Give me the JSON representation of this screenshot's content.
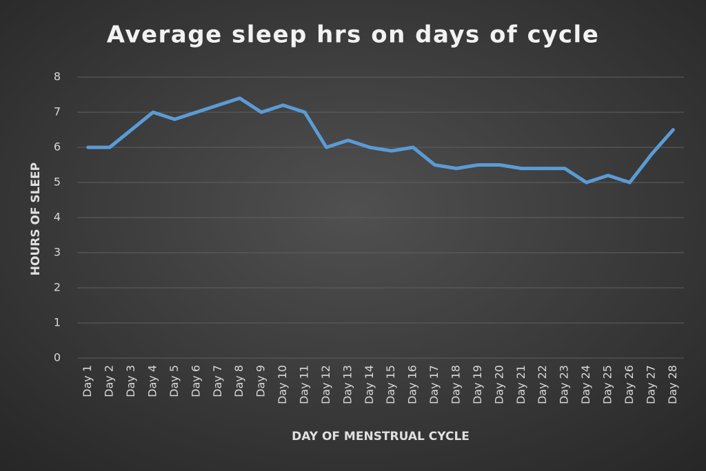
{
  "chart_data": {
    "type": "line",
    "title": "Average sleep hrs on days of cycle",
    "x_label": "DAY OF MENSTRUAL CYCLE",
    "y_label": "HOURS OF SLEEP",
    "categories": [
      "Day 1",
      "Day 2",
      "Day 3",
      "Day 4",
      "Day 5",
      "Day 6",
      "Day 7",
      "Day 8",
      "Day 9",
      "Day 10",
      "Day 11",
      "Day 12",
      "Day 13",
      "Day 14",
      "Day 15",
      "Day 16",
      "Day 17",
      "Day 18",
      "Day 19",
      "Day 20",
      "Day 21",
      "Day 22",
      "Day 23",
      "Day 24",
      "Day 25",
      "Day 26",
      "Day 27",
      "Day 28"
    ],
    "values": [
      6.0,
      6.0,
      6.5,
      7.0,
      6.8,
      7.0,
      7.2,
      7.4,
      7.0,
      7.2,
      7.0,
      6.0,
      6.2,
      6.0,
      5.9,
      6.0,
      5.5,
      5.4,
      5.5,
      5.5,
      5.4,
      5.4,
      5.4,
      5.0,
      5.2,
      5.0,
      5.8,
      6.5
    ],
    "color": "#5b9bd5",
    "ylim": [
      0,
      8
    ],
    "yticks": [
      0,
      1,
      2,
      3,
      4,
      5,
      6,
      7,
      8
    ],
    "grid": true
  }
}
